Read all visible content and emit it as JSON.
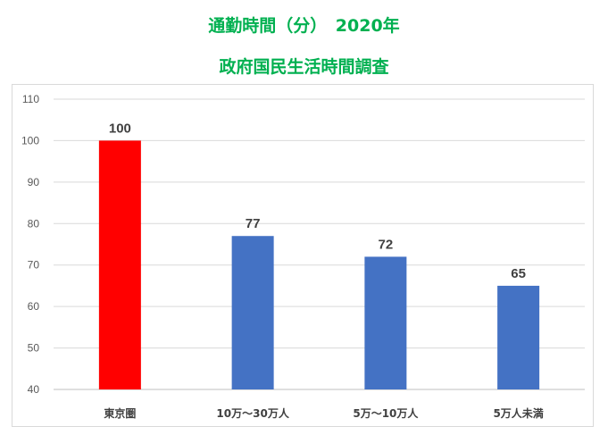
{
  "chart_data": {
    "type": "bar",
    "title": "通勤時間（分）　2020年",
    "subtitle": "政府国民生活時間調査",
    "categories": [
      "東京圏",
      "10万～30万人",
      "5万～10万人",
      "5万人未満"
    ],
    "values": [
      100,
      77,
      72,
      65
    ],
    "colors": [
      "#FF0000",
      "#4472C4",
      "#4472C4",
      "#4472C4"
    ],
    "ylim": [
      40,
      110
    ],
    "yticks": [
      40,
      50,
      60,
      70,
      80,
      90,
      100,
      110
    ],
    "grid": true,
    "data_labels": true,
    "title_color": "#00B050"
  }
}
